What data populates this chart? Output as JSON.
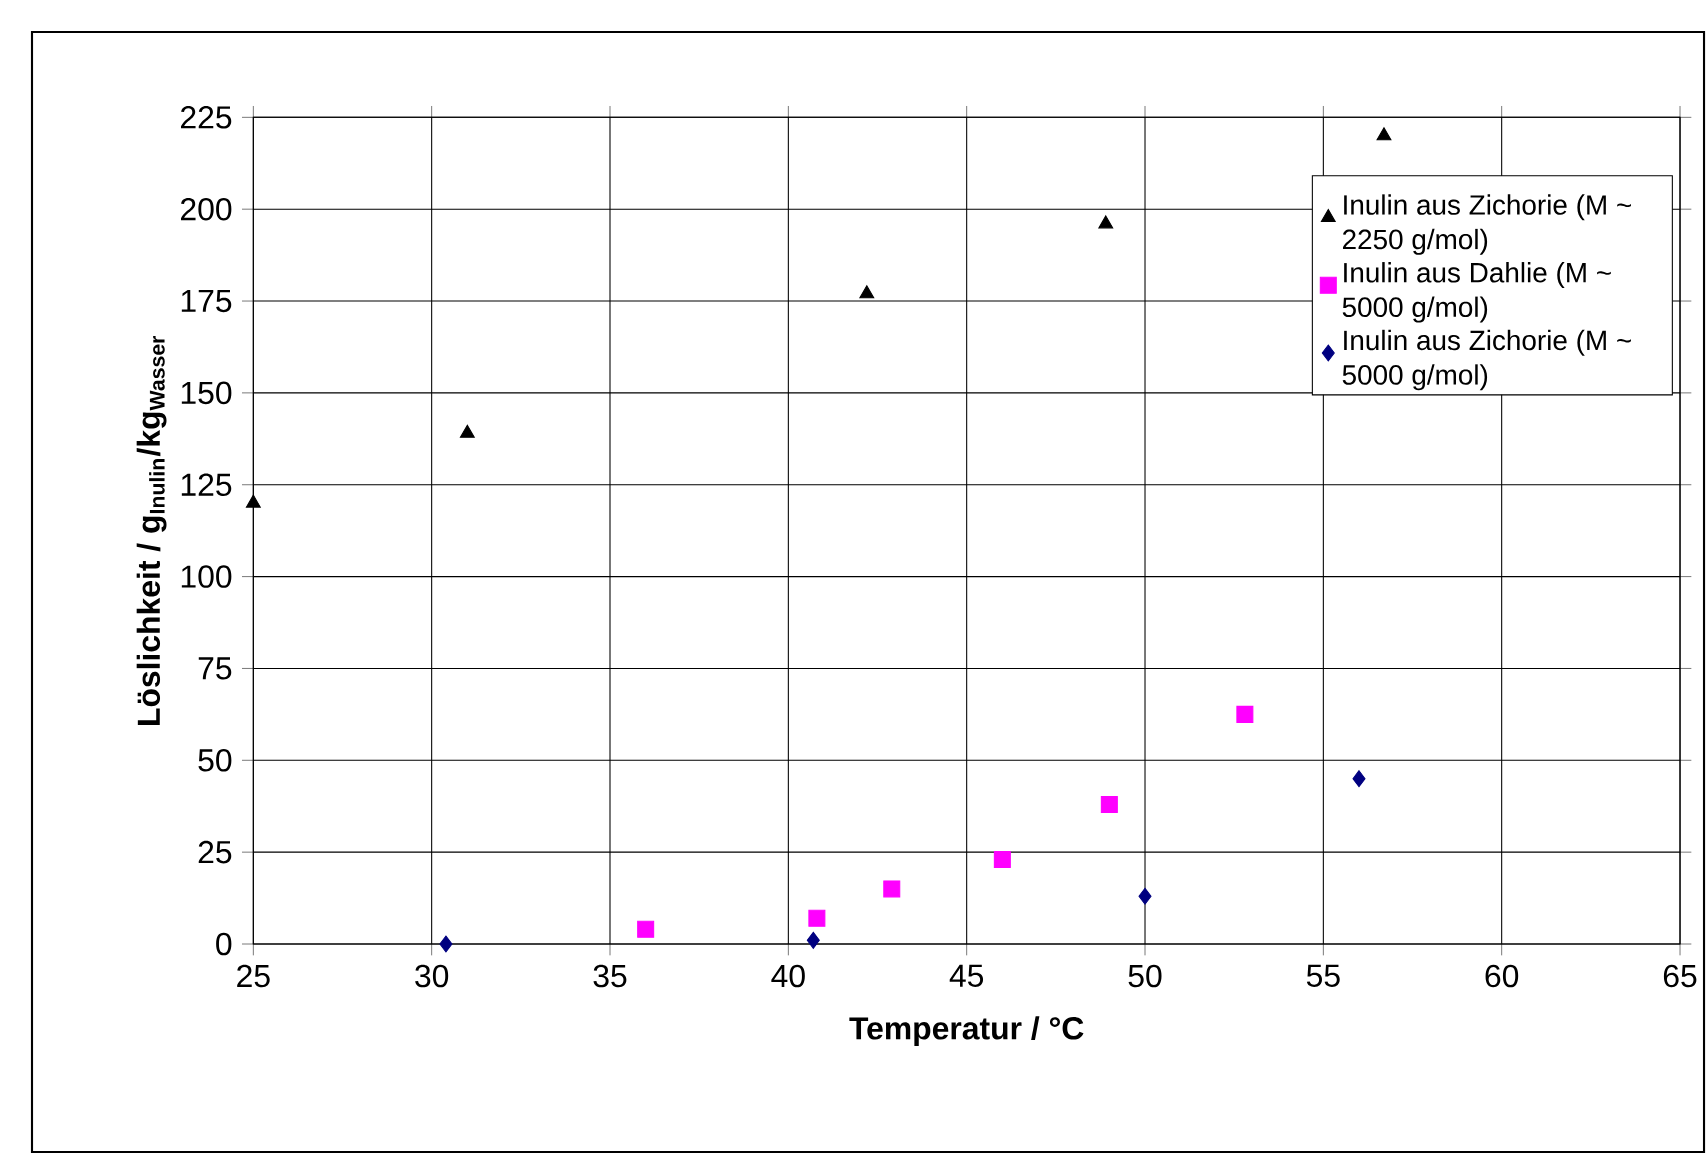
{
  "chart_data": {
    "type": "scatter",
    "xlabel": "Temperatur / °C",
    "ylabel": "Löslichkeit / g$_{Inulin}$/kg$_{Wasser}$",
    "xlim": [
      25,
      65
    ],
    "xticks": [
      25,
      30,
      35,
      40,
      45,
      50,
      55,
      60,
      65
    ],
    "ylim": [
      0,
      225
    ],
    "yticks": [
      0,
      25,
      50,
      75,
      100,
      125,
      150,
      175,
      200,
      225
    ],
    "grid": true,
    "legend": "top right",
    "series": [
      {
        "name": "Inulin aus Zichorie (M ~ 2250 g/mol)",
        "color": "#000000",
        "marker": "triangle",
        "x": [
          25,
          31.0,
          42.2,
          48.9,
          56.7
        ],
        "values": [
          120,
          139,
          177,
          196,
          220
        ]
      },
      {
        "name": "Inulin aus Dahlie (M ~ 5000 g/mol)",
        "color": "#ff00ff",
        "marker": "square",
        "x": [
          36.0,
          40.8,
          42.9,
          46.0,
          49.0,
          52.8
        ],
        "values": [
          4,
          7,
          15,
          23,
          38,
          62.5
        ]
      },
      {
        "name": "Inulin aus Zichorie (M ~ 5000 g/mol)",
        "color": "#000080",
        "marker": "diamond",
        "x": [
          30.4,
          40.7,
          50.0,
          56.0
        ],
        "values": [
          0,
          1,
          13,
          45
        ]
      }
    ]
  }
}
